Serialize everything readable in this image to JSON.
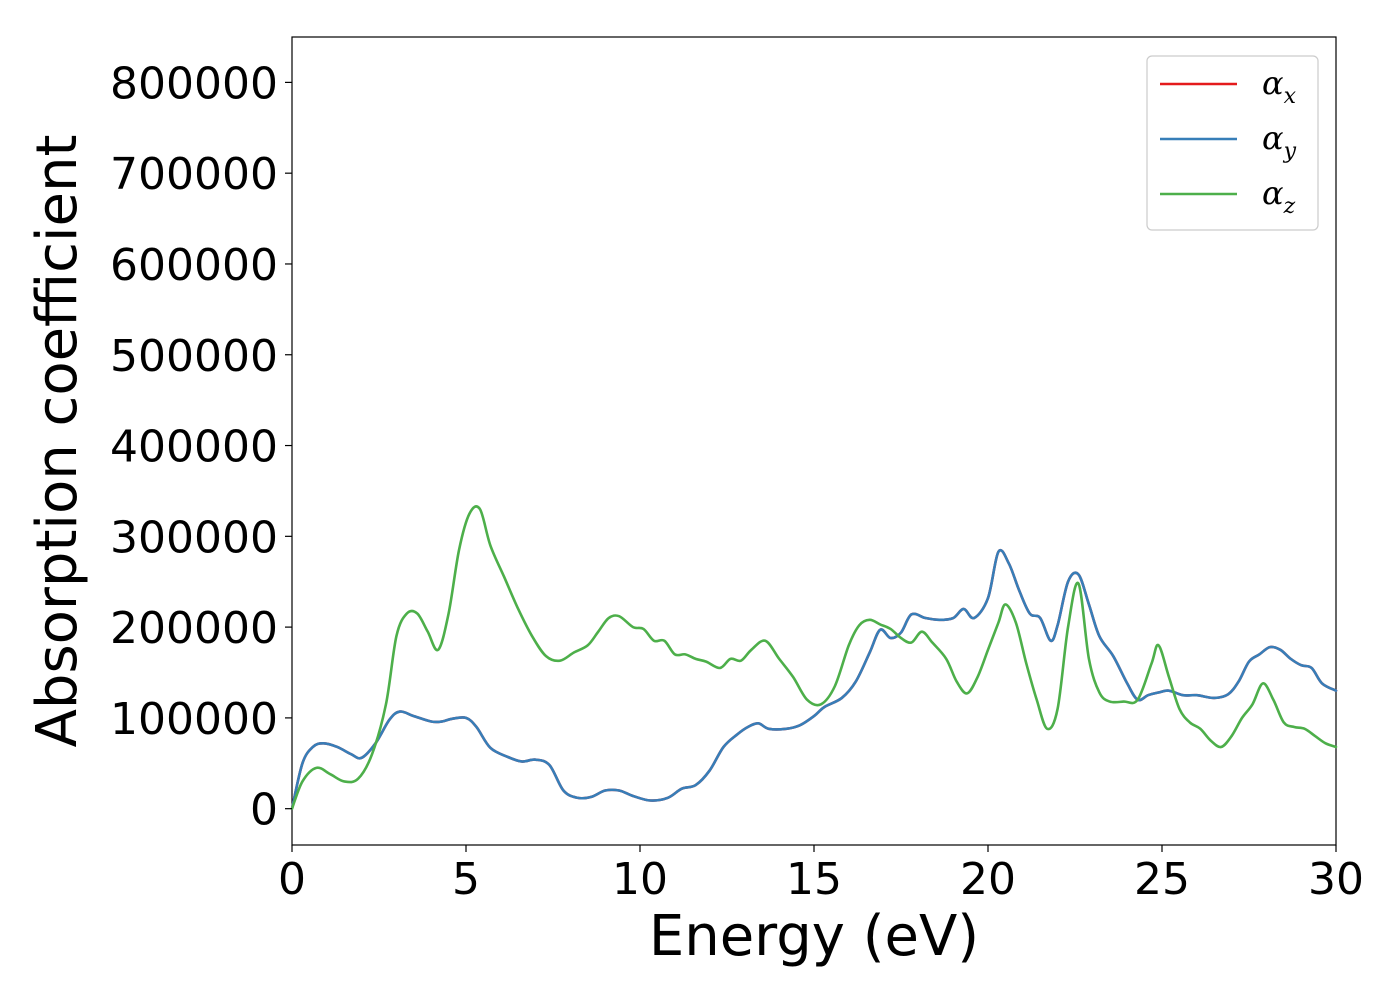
{
  "chart_data": {
    "type": "line",
    "xlabel": "Energy (eV)",
    "ylabel": "Absorption coefficient",
    "xlim": [
      0,
      30
    ],
    "ylim": [
      -40000,
      850000
    ],
    "xticks": [
      0,
      5,
      10,
      15,
      20,
      25,
      30
    ],
    "yticks": [
      0,
      100000,
      200000,
      300000,
      400000,
      500000,
      600000,
      700000,
      800000
    ],
    "grid": false,
    "legend_position": "top-right",
    "series": [
      {
        "name": "αx",
        "legend_symbol": "α",
        "legend_sub": "x",
        "color": "#e41a1c",
        "x": [
          0,
          0.3,
          0.6,
          0.9,
          1.3,
          1.7,
          2.0,
          2.4,
          2.8,
          3.1,
          3.5,
          4.0,
          4.3,
          4.6,
          5.0,
          5.3,
          5.7,
          6.2,
          6.6,
          7.0,
          7.4,
          7.8,
          8.2,
          8.6,
          9.0,
          9.4,
          9.8,
          10.3,
          10.8,
          11.2,
          11.6,
          12.0,
          12.4,
          12.8,
          13.1,
          13.4,
          13.7,
          14.2,
          14.6,
          15.0,
          15.3,
          15.8,
          16.2,
          16.6,
          16.9,
          17.2,
          17.5,
          17.8,
          18.2,
          18.6,
          19.0,
          19.3,
          19.6,
          20.0,
          20.3,
          20.6,
          20.9,
          21.2,
          21.5,
          21.8,
          22.0,
          22.3,
          22.6,
          22.9,
          23.2,
          23.6,
          24.0,
          24.3,
          24.6,
          24.9,
          25.2,
          25.6,
          26.0,
          26.5,
          26.9,
          27.2,
          27.5,
          27.8,
          28.1,
          28.4,
          28.7,
          29.0,
          29.3,
          29.6,
          30.0
        ],
        "y": [
          0,
          50000,
          68000,
          72000,
          68000,
          60000,
          56000,
          72000,
          98000,
          107000,
          102000,
          96000,
          96000,
          99000,
          100000,
          90000,
          67000,
          57000,
          52000,
          54000,
          48000,
          20000,
          12000,
          13000,
          20000,
          20000,
          14000,
          9000,
          12000,
          22000,
          26000,
          42000,
          68000,
          82000,
          90000,
          94000,
          88000,
          88000,
          92000,
          102000,
          112000,
          122000,
          140000,
          172000,
          197000,
          188000,
          194000,
          214000,
          210000,
          208000,
          210000,
          220000,
          210000,
          232000,
          283000,
          270000,
          240000,
          215000,
          210000,
          185000,
          202000,
          250000,
          258000,
          225000,
          190000,
          168000,
          138000,
          120000,
          125000,
          128000,
          130000,
          125000,
          125000,
          122000,
          126000,
          140000,
          162000,
          170000,
          178000,
          175000,
          165000,
          158000,
          155000,
          138000,
          130000
        ]
      },
      {
        "name": "αy",
        "legend_symbol": "α",
        "legend_sub": "y",
        "color": "#377eb8",
        "x": [
          0,
          0.3,
          0.6,
          0.9,
          1.3,
          1.7,
          2.0,
          2.4,
          2.8,
          3.1,
          3.5,
          4.0,
          4.3,
          4.6,
          5.0,
          5.3,
          5.7,
          6.2,
          6.6,
          7.0,
          7.4,
          7.8,
          8.2,
          8.6,
          9.0,
          9.4,
          9.8,
          10.3,
          10.8,
          11.2,
          11.6,
          12.0,
          12.4,
          12.8,
          13.1,
          13.4,
          13.7,
          14.2,
          14.6,
          15.0,
          15.3,
          15.8,
          16.2,
          16.6,
          16.9,
          17.2,
          17.5,
          17.8,
          18.2,
          18.6,
          19.0,
          19.3,
          19.6,
          20.0,
          20.3,
          20.6,
          20.9,
          21.2,
          21.5,
          21.8,
          22.0,
          22.3,
          22.6,
          22.9,
          23.2,
          23.6,
          24.0,
          24.3,
          24.6,
          24.9,
          25.2,
          25.6,
          26.0,
          26.5,
          26.9,
          27.2,
          27.5,
          27.8,
          28.1,
          28.4,
          28.7,
          29.0,
          29.3,
          29.6,
          30.0
        ],
        "y": [
          0,
          50000,
          68000,
          72000,
          68000,
          60000,
          56000,
          72000,
          98000,
          107000,
          102000,
          96000,
          96000,
          99000,
          100000,
          90000,
          67000,
          57000,
          52000,
          54000,
          48000,
          20000,
          12000,
          13000,
          20000,
          20000,
          14000,
          9000,
          12000,
          22000,
          26000,
          42000,
          68000,
          82000,
          90000,
          94000,
          88000,
          88000,
          92000,
          102000,
          112000,
          122000,
          140000,
          172000,
          197000,
          188000,
          194000,
          214000,
          210000,
          208000,
          210000,
          220000,
          210000,
          232000,
          283000,
          270000,
          240000,
          215000,
          210000,
          185000,
          202000,
          250000,
          258000,
          225000,
          190000,
          168000,
          138000,
          120000,
          125000,
          128000,
          130000,
          125000,
          125000,
          122000,
          126000,
          140000,
          162000,
          170000,
          178000,
          175000,
          165000,
          158000,
          155000,
          138000,
          130000
        ]
      },
      {
        "name": "αz",
        "legend_symbol": "α",
        "legend_sub": "z",
        "color": "#4daf4a",
        "x": [
          0,
          0.3,
          0.7,
          1.1,
          1.5,
          1.9,
          2.3,
          2.7,
          3.0,
          3.3,
          3.6,
          3.9,
          4.2,
          4.5,
          4.8,
          5.1,
          5.4,
          5.7,
          6.1,
          6.5,
          6.9,
          7.3,
          7.7,
          8.1,
          8.5,
          8.8,
          9.1,
          9.4,
          9.8,
          10.1,
          10.4,
          10.7,
          11.0,
          11.3,
          11.6,
          11.9,
          12.3,
          12.6,
          12.9,
          13.2,
          13.6,
          14.0,
          14.4,
          14.8,
          15.2,
          15.6,
          16.0,
          16.3,
          16.6,
          16.9,
          17.2,
          17.5,
          17.8,
          18.1,
          18.4,
          18.8,
          19.1,
          19.4,
          19.7,
          20.0,
          20.3,
          20.5,
          20.8,
          21.1,
          21.4,
          21.7,
          22.0,
          22.3,
          22.6,
          22.9,
          23.2,
          23.5,
          23.9,
          24.3,
          24.7,
          24.9,
          25.2,
          25.5,
          25.8,
          26.1,
          26.4,
          26.7,
          27.0,
          27.3,
          27.6,
          27.9,
          28.2,
          28.5,
          28.8,
          29.1,
          29.4,
          29.7,
          30.0
        ],
        "y": [
          0,
          30000,
          45000,
          38000,
          30000,
          33000,
          60000,
          115000,
          190000,
          215000,
          215000,
          195000,
          175000,
          215000,
          285000,
          325000,
          330000,
          290000,
          255000,
          220000,
          190000,
          168000,
          163000,
          172000,
          180000,
          195000,
          210000,
          212000,
          200000,
          198000,
          185000,
          185000,
          170000,
          170000,
          165000,
          162000,
          155000,
          165000,
          163000,
          175000,
          185000,
          165000,
          145000,
          120000,
          115000,
          135000,
          180000,
          202000,
          208000,
          203000,
          198000,
          188000,
          183000,
          195000,
          183000,
          165000,
          140000,
          127000,
          145000,
          175000,
          205000,
          225000,
          205000,
          160000,
          120000,
          88000,
          110000,
          200000,
          248000,
          165000,
          128000,
          118000,
          118000,
          120000,
          160000,
          180000,
          145000,
          110000,
          95000,
          88000,
          75000,
          68000,
          80000,
          100000,
          115000,
          138000,
          120000,
          95000,
          90000,
          88000,
          80000,
          72000,
          68000
        ]
      }
    ]
  }
}
